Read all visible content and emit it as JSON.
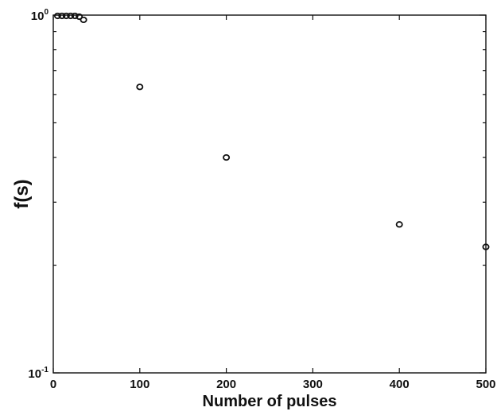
{
  "chart_data": {
    "type": "scatter",
    "xlabel": "Number of pulses",
    "ylabel": "f(s)",
    "xlim": [
      0,
      500
    ],
    "ylim": [
      0.1,
      1
    ],
    "yscale": "log",
    "grid": false,
    "marker": "open-circle",
    "marker_color": "#111111",
    "x_ticks": [
      0,
      100,
      200,
      300,
      400,
      500
    ],
    "x_tick_labels": [
      "0",
      "100",
      "200",
      "300",
      "400",
      "500"
    ],
    "y_ticks": [
      {
        "value": 1,
        "base": "10",
        "exponent": "0"
      },
      {
        "value": 0.1,
        "base": "10",
        "exponent": "-1"
      }
    ],
    "series": [
      {
        "points": [
          {
            "x": 5,
            "y": 0.995
          },
          {
            "x": 10,
            "y": 0.995
          },
          {
            "x": 15,
            "y": 0.995
          },
          {
            "x": 20,
            "y": 0.995
          },
          {
            "x": 25,
            "y": 0.995
          },
          {
            "x": 30,
            "y": 0.99
          },
          {
            "x": 35,
            "y": 0.97
          },
          {
            "x": 100,
            "y": 0.63
          },
          {
            "x": 200,
            "y": 0.4
          },
          {
            "x": 400,
            "y": 0.26
          },
          {
            "x": 500,
            "y": 0.225
          }
        ]
      }
    ]
  }
}
